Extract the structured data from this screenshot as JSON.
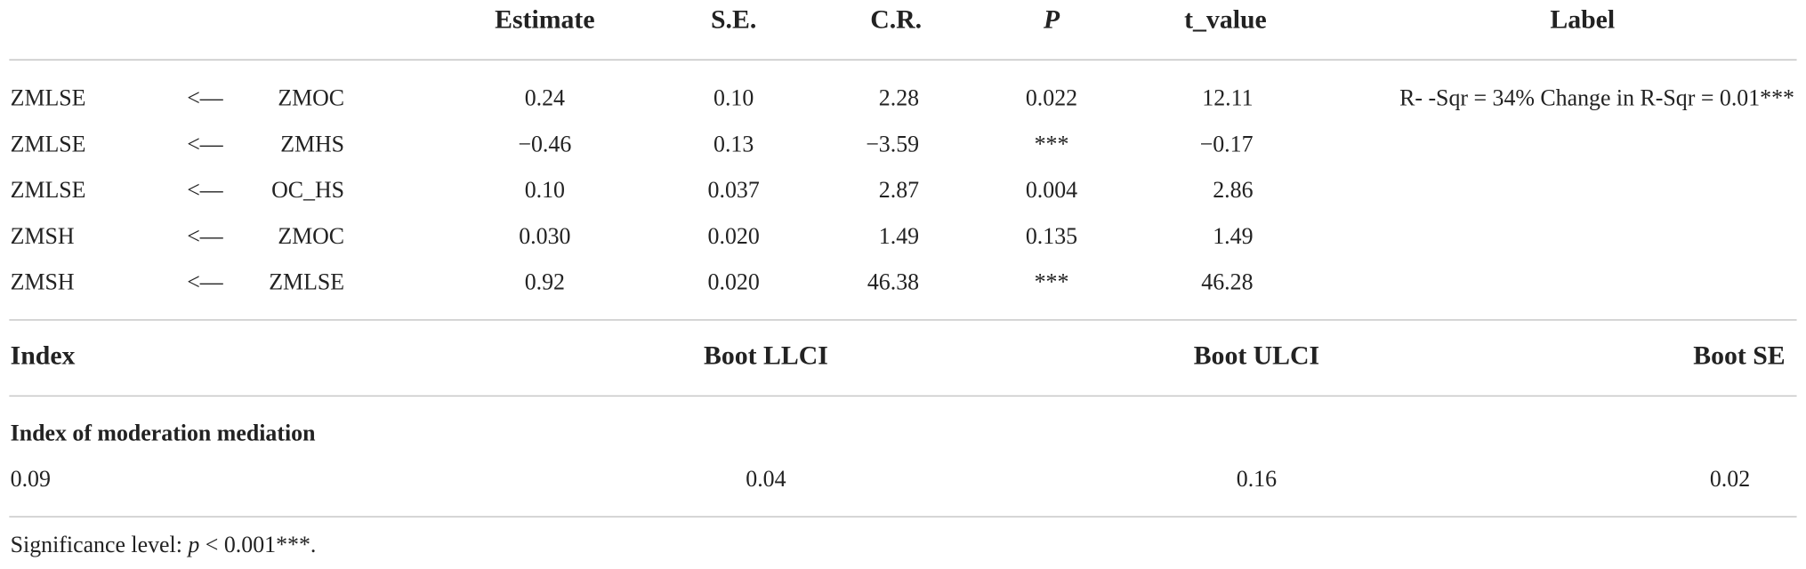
{
  "table": {
    "headers": [
      "Estimate",
      "S.E.",
      "C.R.",
      "P",
      "t_value",
      "Label"
    ],
    "rows": [
      [
        "ZMLSE",
        "<—",
        "ZMOC",
        "0.24",
        "0.10",
        "2.28",
        "0.022",
        "12.11"
      ],
      [
        "ZMLSE",
        "<—",
        "ZMHS",
        "−0.46",
        "0.13",
        "−3.59",
        "***",
        "−0.17"
      ],
      [
        "ZMLSE",
        "<—",
        "OC_HS",
        "0.10",
        "0.037",
        "2.87",
        "0.004",
        "2.86"
      ],
      [
        "ZMSH",
        "<—",
        "ZMOC",
        "0.030",
        "0.020",
        "1.49",
        "0.135",
        "1.49"
      ],
      [
        "ZMSH",
        "<—",
        "ZMLSE",
        "0.92",
        "0.020",
        "46.38",
        "***",
        "46.28"
      ]
    ],
    "label_note": "R- -Sqr = 34% Change in R-Sqr = 0.01***"
  },
  "index_table": {
    "headers": [
      "Index",
      "Boot LLCI",
      "Boot ULCI",
      "Boot SE"
    ],
    "subheading": "Index of moderation mediation",
    "row": [
      "0.09",
      "0.04",
      "0.16",
      "0.02"
    ]
  },
  "footnote": [
    "Significance level: ",
    "p",
    " < 0.001***."
  ]
}
